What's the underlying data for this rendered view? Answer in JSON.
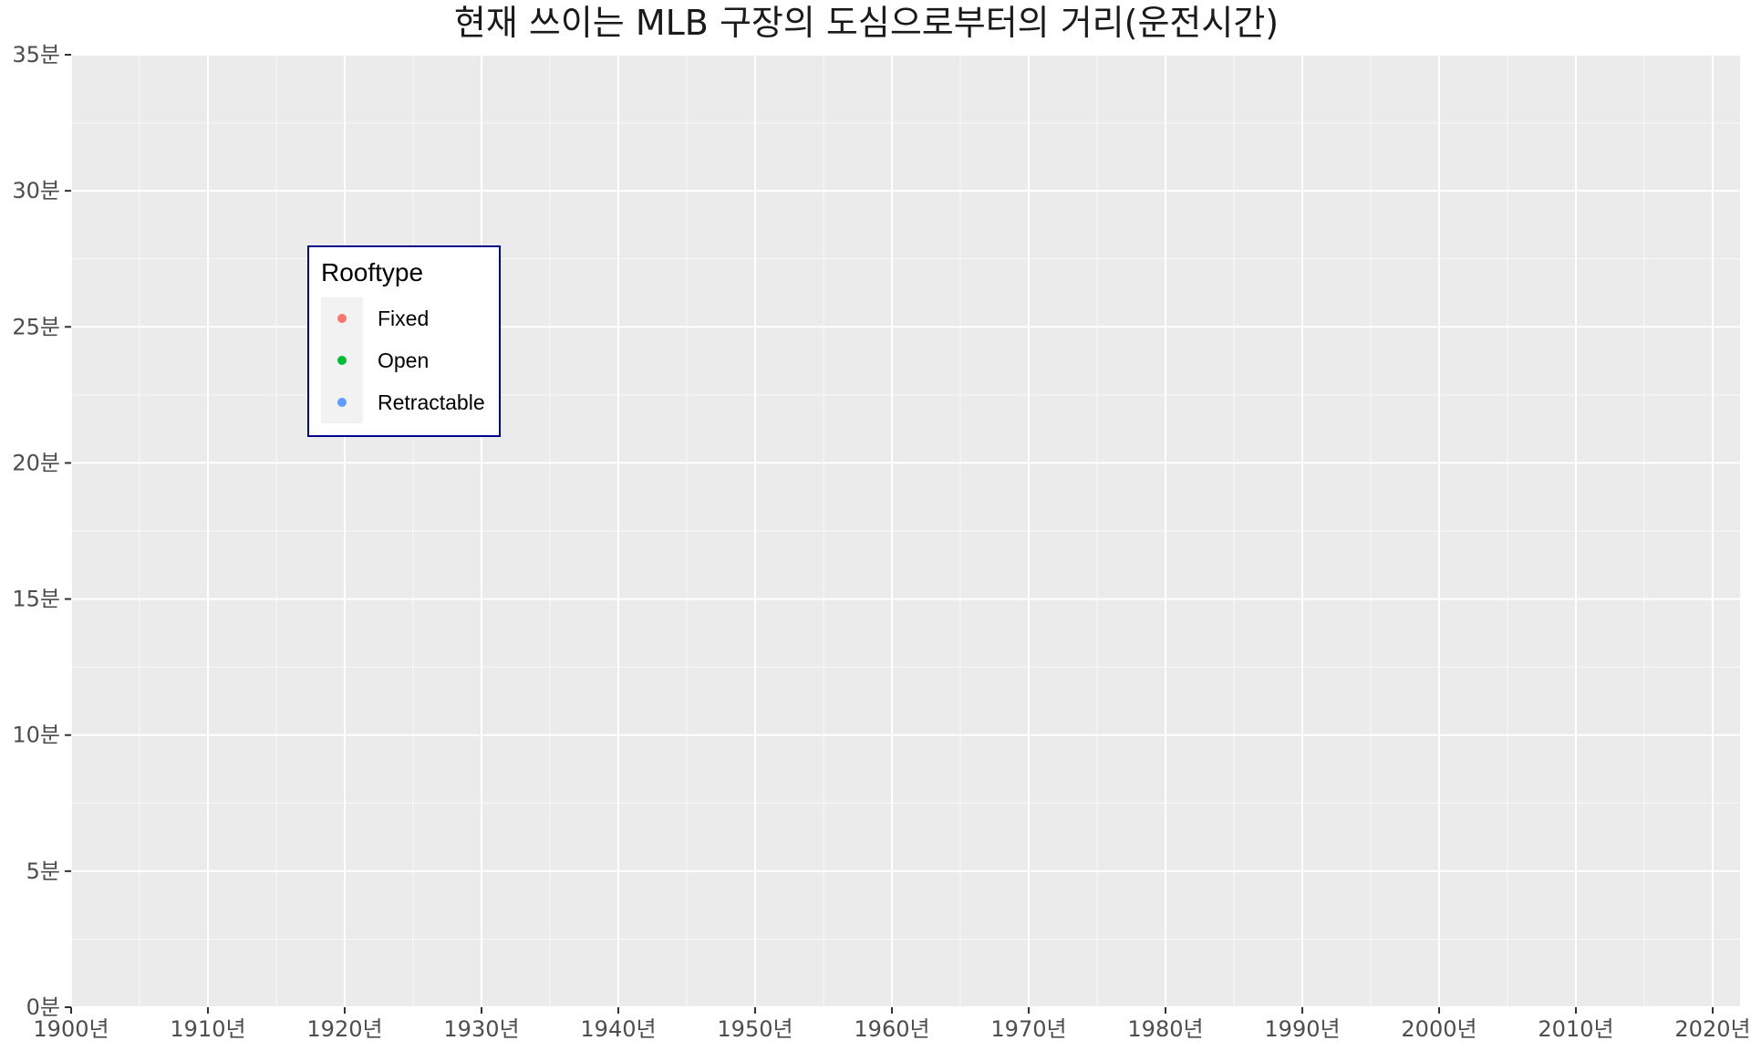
{
  "chart_data": {
    "type": "scatter",
    "title": "현재 쓰이는 MLB 구장의 도심으로부터의 거리(운전시간)",
    "xlabel": "",
    "ylabel": "",
    "xlim": [
      1900,
      2022
    ],
    "ylim": [
      0,
      35
    ],
    "x_ticks": [
      1900,
      1910,
      1920,
      1930,
      1940,
      1950,
      1960,
      1970,
      1980,
      1990,
      2000,
      2010,
      2020
    ],
    "x_tick_labels": [
      "1900년",
      "1910년",
      "1920년",
      "1930년",
      "1940년",
      "1950년",
      "1960년",
      "1970년",
      "1980년",
      "1990년",
      "2000년",
      "2010년",
      "2020년"
    ],
    "y_ticks": [
      0,
      5,
      10,
      15,
      20,
      25,
      30,
      35
    ],
    "y_tick_labels": [
      "0분",
      "5분",
      "10분",
      "15분",
      "20분",
      "25분",
      "30분",
      "35분"
    ],
    "grid": true,
    "background": "#ebebeb",
    "legend": {
      "title": "Rooftype",
      "placement": "inside-top-left",
      "entries": [
        {
          "label": "Fixed",
          "color": "#f8766d"
        },
        {
          "label": "Open",
          "color": "#00ba38"
        },
        {
          "label": "Retractable",
          "color": "#619cff"
        }
      ]
    },
    "series": [
      {
        "name": "Fixed",
        "color": "#f8766d",
        "points": []
      },
      {
        "name": "Open",
        "color": "#00ba38",
        "points": []
      },
      {
        "name": "Retractable",
        "color": "#619cff",
        "points": []
      }
    ]
  }
}
